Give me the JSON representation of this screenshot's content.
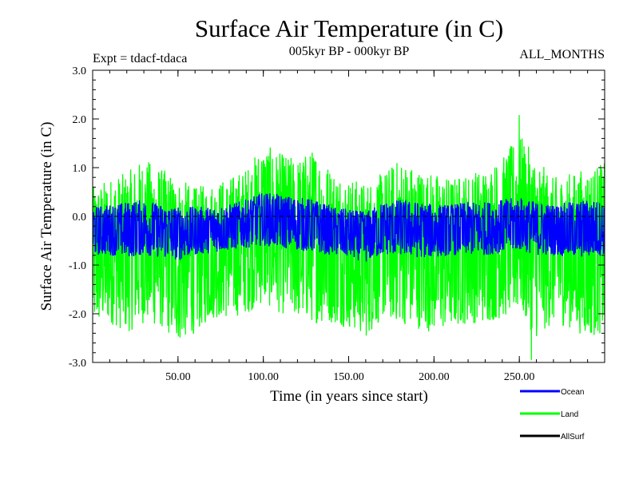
{
  "chart_data": {
    "type": "line",
    "title": "Surface Air Temperature (in C)",
    "subtitle": "005kyr BP - 000kyr BP",
    "experiment_label": "Expt = tdacf-tdaca",
    "months_label": "ALL_MONTHS",
    "xlabel": "Time (in years since start)",
    "ylabel": "Surface Air Temperature (in C)",
    "xlim": [
      0,
      300
    ],
    "ylim": [
      -3.0,
      3.0
    ],
    "x_ticks": [
      50,
      100,
      150,
      200,
      250
    ],
    "x_tick_labels": [
      "50.00",
      "100.00",
      "150.00",
      "200.00",
      "250.00"
    ],
    "y_ticks": [
      -3,
      -2,
      -1,
      0,
      1,
      2,
      3
    ],
    "y_tick_labels": [
      "-3.0",
      "-2.0",
      "-1.0",
      "0.0",
      "1.0",
      "2.0",
      "3.0"
    ],
    "zero_line": "dashed",
    "series": [
      {
        "name": "Land",
        "color": "#00ff00",
        "envelope_x": [
          0,
          10,
          20,
          30,
          40,
          50,
          60,
          70,
          80,
          90,
          100,
          110,
          120,
          130,
          140,
          150,
          160,
          170,
          180,
          190,
          200,
          210,
          220,
          230,
          240,
          250,
          260,
          270,
          280,
          290,
          300
        ],
        "upper": [
          0.6,
          0.8,
          0.9,
          1.2,
          1.0,
          0.8,
          0.6,
          0.7,
          0.8,
          1.0,
          1.5,
          1.3,
          1.2,
          1.4,
          1.0,
          0.8,
          0.7,
          0.9,
          1.2,
          1.0,
          0.9,
          0.8,
          0.9,
          1.0,
          1.2,
          1.7,
          1.2,
          0.8,
          0.9,
          1.0,
          1.1
        ],
        "lower": [
          -2.3,
          -2.2,
          -2.4,
          -2.2,
          -2.3,
          -2.6,
          -2.4,
          -2.1,
          -2.1,
          -2.0,
          -1.8,
          -2.0,
          -2.1,
          -2.2,
          -2.2,
          -2.3,
          -2.5,
          -2.1,
          -2.2,
          -2.3,
          -2.4,
          -2.3,
          -2.2,
          -2.2,
          -2.1,
          -2.0,
          -2.5,
          -2.2,
          -2.3,
          -2.5,
          -2.4
        ],
        "peak_max": {
          "x": 250,
          "y": 2.08
        },
        "peak_min": {
          "x": 257,
          "y": -2.95
        }
      },
      {
        "name": "Ocean",
        "color": "#0000ff",
        "envelope_x": [
          0,
          10,
          20,
          30,
          40,
          50,
          60,
          70,
          80,
          90,
          100,
          110,
          120,
          130,
          140,
          150,
          160,
          170,
          180,
          190,
          200,
          210,
          220,
          230,
          240,
          250,
          260,
          270,
          280,
          290,
          300
        ],
        "upper": [
          0.2,
          0.25,
          0.3,
          0.35,
          0.25,
          0.2,
          0.2,
          0.2,
          0.25,
          0.35,
          0.5,
          0.45,
          0.4,
          0.35,
          0.2,
          0.15,
          0.1,
          0.3,
          0.35,
          0.3,
          0.25,
          0.25,
          0.3,
          0.3,
          0.35,
          0.4,
          0.3,
          0.25,
          0.3,
          0.35,
          0.3
        ],
        "lower": [
          -0.8,
          -0.8,
          -0.85,
          -0.8,
          -0.85,
          -0.9,
          -0.8,
          -0.75,
          -0.7,
          -0.65,
          -0.6,
          -0.65,
          -0.7,
          -0.75,
          -0.8,
          -0.85,
          -0.95,
          -0.8,
          -0.8,
          -0.85,
          -0.85,
          -0.8,
          -0.8,
          -0.8,
          -0.75,
          -0.7,
          -0.8,
          -0.8,
          -0.85,
          -0.85,
          -0.8
        ]
      },
      {
        "name": "AllSurf",
        "color": "#000000",
        "note": "not visibly drawn"
      }
    ],
    "legend": {
      "position": "bottom-right",
      "entries": [
        {
          "name": "Ocean",
          "color": "#0000ff"
        },
        {
          "name": "Land",
          "color": "#00ff00"
        },
        {
          "name": "AllSurf",
          "color": "#000000"
        }
      ]
    }
  }
}
